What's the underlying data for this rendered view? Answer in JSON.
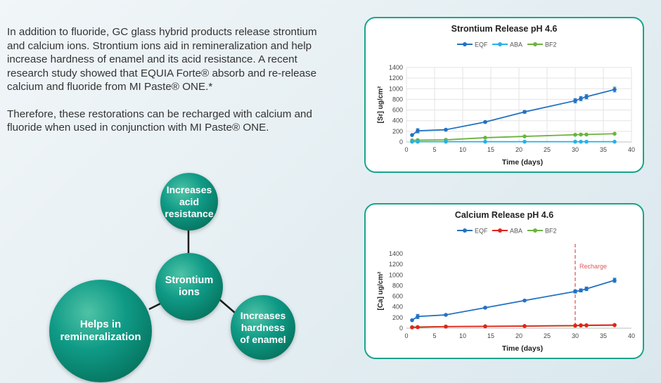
{
  "intro": {
    "paragraph_1": "In addition to fluoride, GC glass hybrid products release strontium and calcium ions. Strontium ions aid in remineralization and help increase hardness of enamel and its acid resistance. A recent research study showed that EQUIA Forte® absorb and re-release calcium and fluoride from MI Paste® ONE.*",
    "paragraph_2": "Therefore, these restorations can be recharged with calcium and fluoride when used in conjunction with MI Paste® ONE."
  },
  "diagram": {
    "center": "Strontium\nions",
    "top": "Increases\nacid\nresistance",
    "left": "Helps in\nremineralization",
    "right": "Increases\nhardness\nof enamel",
    "circle_color": "#0f9a86"
  },
  "chart_data": [
    {
      "type": "line",
      "title": "Strontium Release pH 4.6",
      "xlabel": "Time (days)",
      "ylabel": "[Sr] ug/cm²",
      "xlim": [
        0,
        40
      ],
      "ylim": [
        0,
        1400
      ],
      "xticks": [
        "0",
        "5",
        "10",
        "15",
        "20",
        "25",
        "30",
        "35",
        "40"
      ],
      "yticks": [
        "0",
        "200",
        "400",
        "600",
        "800",
        "1000",
        "1200",
        "1400"
      ],
      "grid": true,
      "legend_position": "top",
      "x": [
        1,
        2,
        7,
        14,
        21,
        30,
        31,
        32,
        37
      ],
      "series": [
        {
          "name": "EQF",
          "color": "#2272c3",
          "values": [
            130,
            210,
            230,
            375,
            565,
            775,
            815,
            850,
            985
          ],
          "error": [
            0,
            40,
            15,
            15,
            25,
            40,
            40,
            40,
            45
          ]
        },
        {
          "name": "ABA",
          "color": "#27b1e6",
          "values": [
            5,
            5,
            5,
            5,
            5,
            5,
            5,
            5,
            5
          ]
        },
        {
          "name": "BF2",
          "color": "#6cb33f",
          "values": [
            30,
            35,
            40,
            80,
            105,
            135,
            140,
            140,
            155
          ]
        }
      ]
    },
    {
      "type": "line",
      "title": "Calcium Release pH 4.6",
      "xlabel": "Time (days)",
      "ylabel": "[Ca] ug/cm²",
      "xlim": [
        0,
        40
      ],
      "ylim": [
        0,
        1400
      ],
      "xticks": [
        "0",
        "5",
        "10",
        "15",
        "20",
        "25",
        "30",
        "35",
        "40"
      ],
      "yticks": [
        "0",
        "200",
        "400",
        "600",
        "800",
        "1000",
        "1200",
        "1400"
      ],
      "grid": false,
      "legend_position": "top",
      "x": [
        1,
        2,
        7,
        14,
        21,
        30,
        31,
        32,
        37
      ],
      "series": [
        {
          "name": "EQF",
          "color": "#2272c3",
          "values": [
            150,
            220,
            250,
            385,
            520,
            690,
            710,
            740,
            900
          ],
          "error": [
            0,
            40,
            15,
            20,
            15,
            30,
            30,
            35,
            40
          ]
        },
        {
          "name": "ABA",
          "color": "#e2231a",
          "values": [
            15,
            18,
            30,
            35,
            40,
            50,
            55,
            55,
            60
          ]
        },
        {
          "name": "BF2",
          "color": "#6cb33f",
          "values": [
            20,
            22,
            30,
            35,
            40,
            45,
            48,
            50,
            55
          ]
        }
      ],
      "annotation": {
        "label": "Recharge",
        "x": 30,
        "color": "#e05a5a"
      }
    }
  ]
}
